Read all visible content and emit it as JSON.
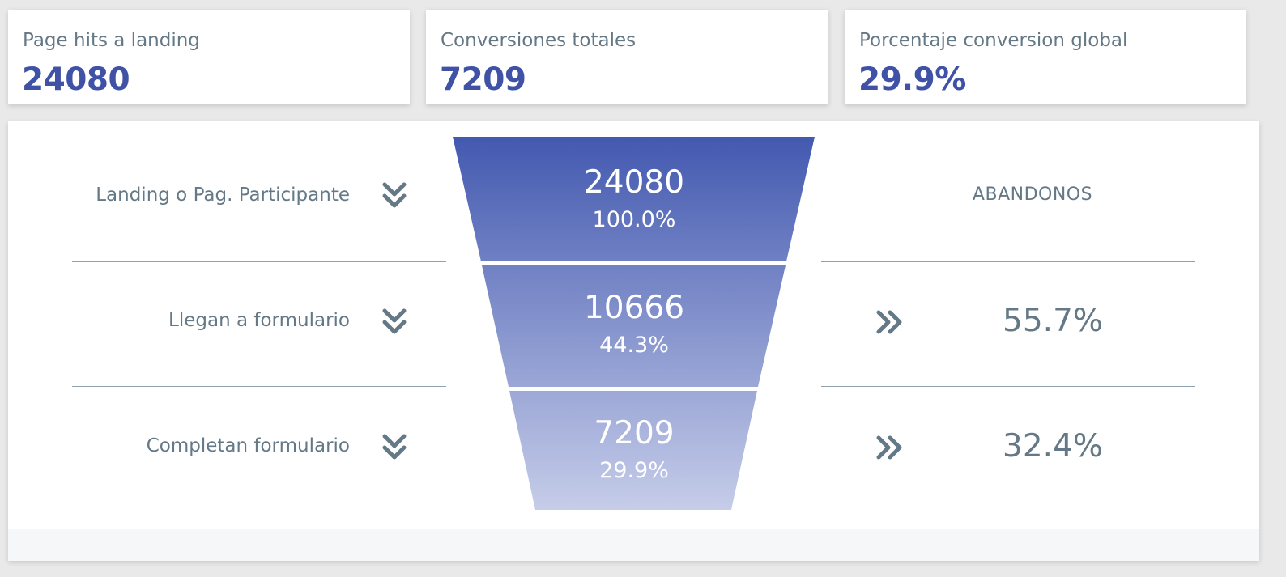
{
  "kpis": [
    {
      "label": "Page hits a landing",
      "value": "24080"
    },
    {
      "label": "Conversiones totales",
      "value": "7209"
    },
    {
      "label": "Porcentaje conversion global",
      "value": "29.9%"
    }
  ],
  "funnel": {
    "abandon_header": "ABANDONOS",
    "stages": [
      {
        "label": "Landing o Pag. Participante",
        "count": "24080",
        "percent": "100.0%",
        "abandon": ""
      },
      {
        "label": "Llegan a formulario",
        "count": "10666",
        "percent": "44.3%",
        "abandon": "55.7%"
      },
      {
        "label": "Completan formulario",
        "count": "7209",
        "percent": "29.9%",
        "abandon": "32.4%"
      }
    ]
  },
  "chart_data": {
    "type": "funnel",
    "categories": [
      "Landing o Pag. Participante",
      "Llegan a formulario",
      "Completan formulario"
    ],
    "values": [
      24080,
      10666,
      7209
    ],
    "percent_of_total": [
      100.0,
      44.3,
      29.9
    ],
    "abandonment_percent": [
      null,
      55.7,
      32.4
    ]
  },
  "colors": {
    "accent": "#3f52a6",
    "label_text": "#647886",
    "funnel_top": "#4359b0",
    "funnel_bottom": "#c6cde9",
    "divider": "#8fa2b1"
  },
  "icons": {
    "stage_marker": "double-chevron-down-icon",
    "abandon_marker": "double-chevron-right-icon"
  }
}
